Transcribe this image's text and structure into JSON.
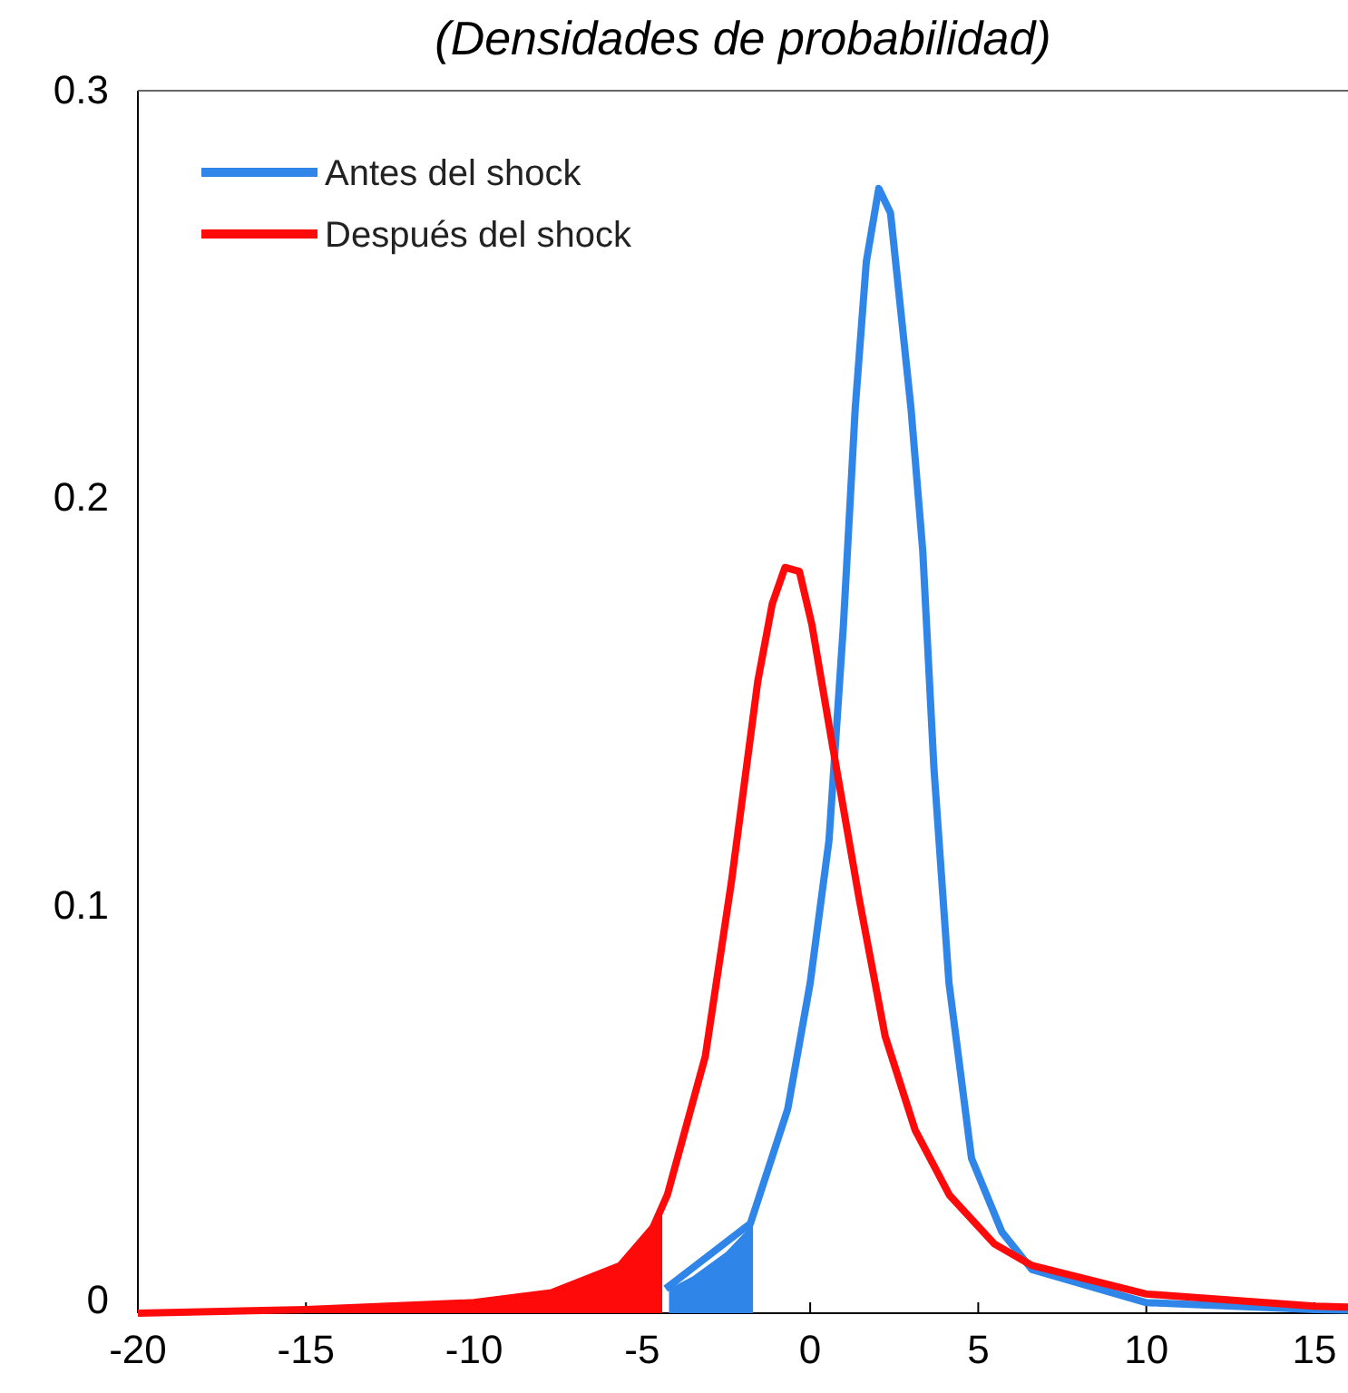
{
  "chart_data": {
    "type": "line",
    "subtitle": "(Densidades de probabilidad)",
    "xlim": [
      -20,
      16
    ],
    "xticks": [
      -20,
      -15,
      -10,
      -5,
      0,
      5,
      10,
      15
    ],
    "ylim": [
      0,
      0.3
    ],
    "yticks": [
      0,
      0.1,
      0.2,
      0.3
    ],
    "grid": false,
    "legend": "top left",
    "marker": "none",
    "line_style": "solid",
    "series": [
      {
        "name": "Antes del shock",
        "color": "#2f86e8",
        "x": [
          -4.3,
          -1.78,
          -0.67,
          0,
          0.56,
          0.99,
          1.34,
          1.67,
          2.04,
          2.39,
          3.0,
          3.35,
          3.68,
          4.13,
          4.8,
          5.7,
          6.6,
          10,
          15,
          16
        ],
        "values": [
          0.006,
          0.022,
          0.05,
          0.081,
          0.116,
          0.169,
          0.222,
          0.258,
          0.276,
          0.27,
          0.222,
          0.187,
          0.134,
          0.081,
          0.038,
          0.02,
          0.0107,
          0.0026,
          0.0009,
          0.0008
        ]
      },
      {
        "name": "Después del shock",
        "color": "#ff0a0a",
        "x": [
          -20,
          -15,
          -10,
          -7.7,
          -5.65,
          -4.68,
          -4.25,
          -3.12,
          -2.34,
          -1.56,
          -1.13,
          -0.75,
          -0.32,
          0.05,
          0.67,
          1.45,
          2.23,
          3.12,
          4.14,
          5.48,
          6.6,
          10,
          15,
          16
        ],
        "values": [
          0,
          0.0009,
          0.0026,
          0.005,
          0.0117,
          0.021,
          0.029,
          0.063,
          0.106,
          0.155,
          0.174,
          0.183,
          0.182,
          0.169,
          0.139,
          0.102,
          0.068,
          0.045,
          0.029,
          0.017,
          0.0117,
          0.0047,
          0.0017,
          0.0015
        ]
      },
      {
        "type": "area",
        "color": "#ff0a0a",
        "x": [
          -20,
          -15,
          -10,
          -7.7,
          -5.65,
          -4.68,
          -4.4
        ],
        "values": [
          0,
          0.0009,
          0.0026,
          0.005,
          0.0117,
          0.021,
          0.025
        ]
      },
      {
        "type": "area",
        "color": "#2f86e8",
        "x": [
          -4.2,
          -3.5,
          -2.5,
          -1.7
        ],
        "values": [
          0.006,
          0.009,
          0.015,
          0.022
        ]
      }
    ]
  }
}
